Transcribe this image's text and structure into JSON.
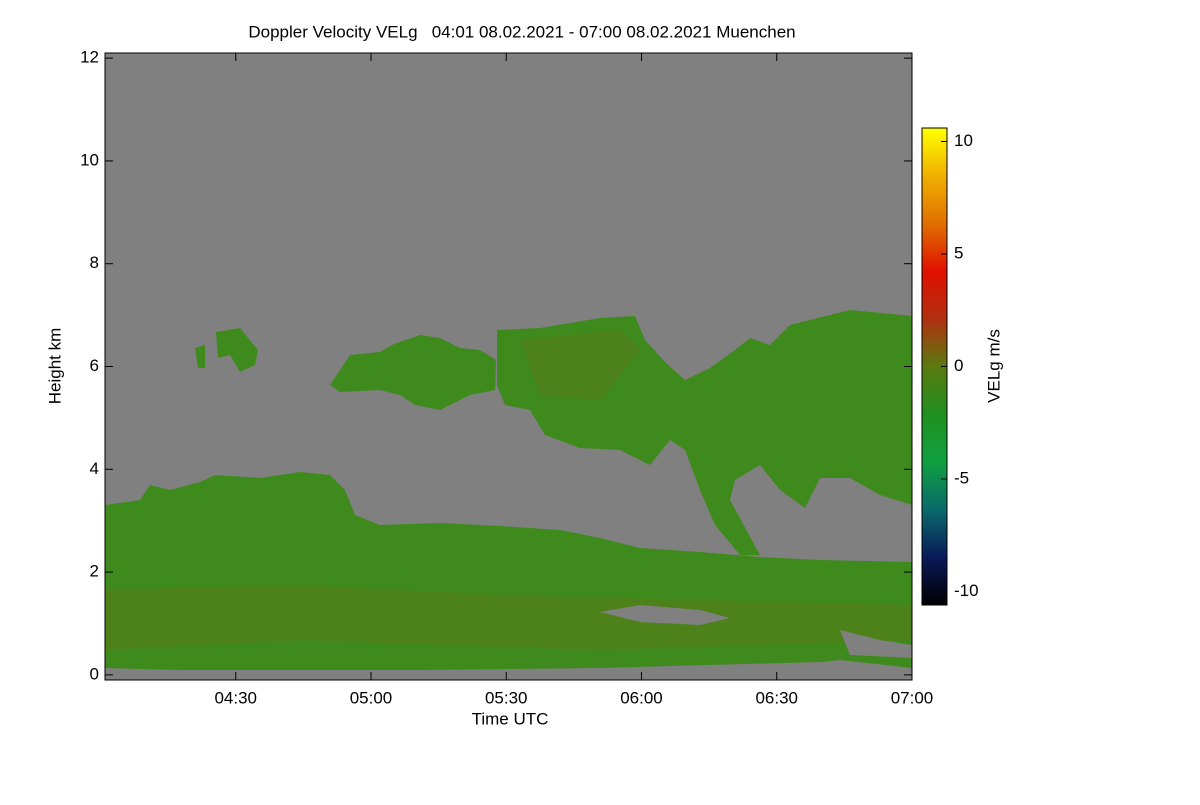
{
  "chart_data": {
    "type": "heatmap",
    "title": "Doppler Velocity VELg   04:01 08.02.2021 - 07:00 08.02.2021 Muenchen",
    "x_label": "Time UTC",
    "y_label": "Height km",
    "colorbar_label": "VELg m/s",
    "xlim": [
      241,
      420
    ],
    "xticks": [
      {
        "value": 270,
        "label": "04:30"
      },
      {
        "value": 300,
        "label": "05:00"
      },
      {
        "value": 330,
        "label": "05:30"
      },
      {
        "value": 360,
        "label": "06:00"
      },
      {
        "value": 390,
        "label": "06:30"
      },
      {
        "value": 420,
        "label": "07:00"
      }
    ],
    "ylim": [
      -0.1,
      12.1
    ],
    "yticks": [
      0,
      2,
      4,
      6,
      8,
      10,
      12
    ],
    "clim": [
      -10.6,
      10.6
    ],
    "cticks": [
      -10,
      -5,
      0,
      5,
      10
    ],
    "colormap": [
      "#000000",
      "#0a1a5a",
      "#0a6a6a",
      "#10a040",
      "#209020",
      "#5a7a10",
      "#b03010",
      "#e01000",
      "#e07000",
      "#f0b000",
      "#ffff00"
    ],
    "background": "#808080"
  }
}
